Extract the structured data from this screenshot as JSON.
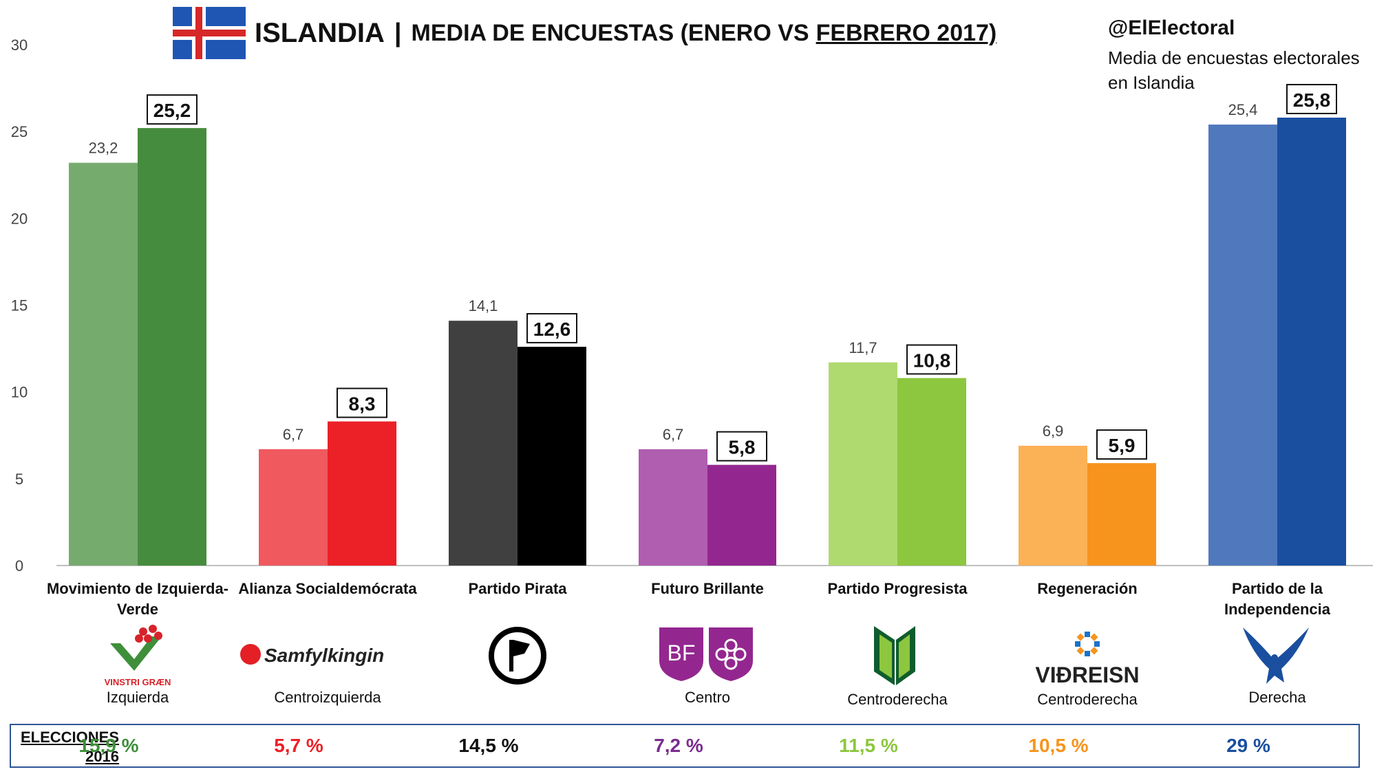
{
  "header": {
    "title_main": "ISLANDIA",
    "title_sep": "|",
    "title_sub": "MEDIA DE ENCUESTAS (ENERO VS",
    "title_sub_underlined": "FEBRERO 2017)",
    "handle": "@ElElectoral",
    "desc_line1": "Media de encuestas electorales",
    "desc_line2": "en Islandia"
  },
  "chart_data": {
    "type": "bar",
    "categories": [
      "Movimiento de Izquierda-Verde",
      "Alianza Socialdemócrata",
      "Partido Pirata",
      "Futuro Brillante",
      "Partido Progresista",
      "Regeneración",
      "Partido de la Independencia"
    ],
    "category_lines": [
      [
        "Movimiento de Izquierda-",
        "Verde"
      ],
      [
        "Alianza Socialdemócrata"
      ],
      [
        "Partido Pirata"
      ],
      [
        "Futuro Brillante"
      ],
      [
        "Partido Progresista"
      ],
      [
        "Regeneración"
      ],
      [
        "Partido de la",
        "Independencia"
      ]
    ],
    "series": [
      {
        "values": [
          23.2,
          6.7,
          14.1,
          6.7,
          11.7,
          6.9,
          25.4
        ],
        "labels": [
          "23,2",
          "6,7",
          "14,1",
          "6,7",
          "11,7",
          "6,9",
          "25,4"
        ]
      },
      {
        "values": [
          25.2,
          8.3,
          12.6,
          5.8,
          10.8,
          5.9,
          25.8
        ],
        "labels": [
          "25,2",
          "8,3",
          "12,6",
          "5,8",
          "10,8",
          "5,9",
          "25,8"
        ]
      }
    ],
    "colors_jan": [
      "#76ab6e",
      "#f0595e",
      "#404040",
      "#af5eb0",
      "#afda6f",
      "#fbb156",
      "#5079bd"
    ],
    "colors_feb": [
      "#468c3e",
      "#ec2027",
      "#000000",
      "#93278f",
      "#8dc63f",
      "#f7941d",
      "#1a4fa0"
    ],
    "ideologies": [
      "Izquierda",
      "Centroizquierda",
      "",
      "Centro",
      "Centroderecha",
      "Centroderecha",
      "Derecha"
    ],
    "logo_icons": [
      "vinstri-graen-logo-icon",
      "samfylkingin-logo-icon",
      "piratar-logo-icon",
      "bjort-framtid-logo-icon",
      "framsokn-logo-icon",
      "vidreisn-logo-icon",
      "sjalfstaedisflokkur-logo-icon"
    ],
    "logo_texts": [
      "VINSTRI GRÆN",
      "Samfylkingin",
      "",
      "BF",
      "",
      "VIÐREISN",
      ""
    ],
    "yticks": [
      "0",
      "5",
      "10",
      "15",
      "20",
      "25",
      "30"
    ],
    "ylim": [
      0,
      30
    ],
    "grid": false,
    "title": "ISLANDIA | MEDIA DE ENCUESTAS (ENERO VS FEBRERO 2017)"
  },
  "elections": {
    "label_line1": "ELECCIONES",
    "label_line2": "2016",
    "values": [
      "15,9 %",
      "5,7 %",
      "14,5 %",
      "7,2 %",
      "11,5 %",
      "10,5 %",
      "29 %"
    ],
    "colors": [
      "#3f8f3a",
      "#ec2027",
      "#111111",
      "#7b2b8f",
      "#8dc63f",
      "#f7941d",
      "#1a4fa0"
    ]
  },
  "flag_icon": "iceland-flag-icon"
}
